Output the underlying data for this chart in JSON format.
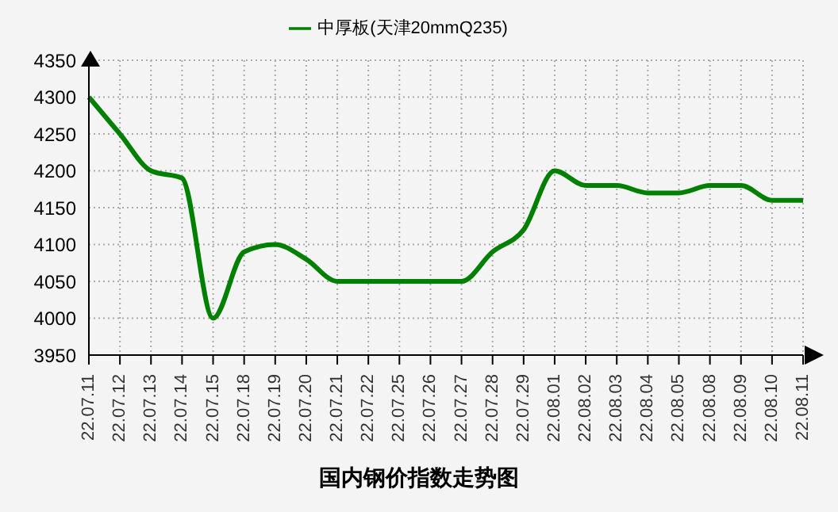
{
  "chart_data": {
    "type": "line",
    "title": "国内钢价指数走势图",
    "categories": [
      "22.07.11",
      "22.07.12",
      "22.07.13",
      "22.07.14",
      "22.07.15",
      "22.07.18",
      "22.07.19",
      "22.07.20",
      "22.07.21",
      "22.07.22",
      "22.07.25",
      "22.07.26",
      "22.07.27",
      "22.07.28",
      "22.07.29",
      "22.08.01",
      "22.08.02",
      "22.08.03",
      "22.08.04",
      "22.08.05",
      "22.08.08",
      "22.08.09",
      "22.08.10",
      "22.08.11"
    ],
    "series": [
      {
        "name": "中厚板(天津20mmQ235)",
        "color": "#008000",
        "values": [
          4300,
          4250,
          4200,
          4190,
          4000,
          4090,
          4100,
          4080,
          4050,
          4050,
          4050,
          4050,
          4050,
          4090,
          4120,
          4200,
          4180,
          4180,
          4170,
          4170,
          4180,
          4180,
          4160,
          4160
        ]
      }
    ],
    "ylim": [
      3950,
      4350
    ],
    "yticks": [
      3950,
      4000,
      4050,
      4100,
      4150,
      4200,
      4250,
      4300,
      4350
    ],
    "grid": true,
    "legend": "top",
    "marker": "none",
    "line_style": "solid"
  }
}
